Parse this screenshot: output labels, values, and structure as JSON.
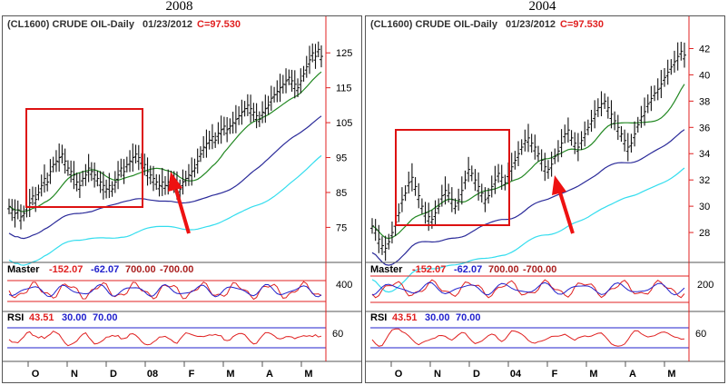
{
  "chart_data": [
    {
      "type": "ohlc",
      "title": "2008",
      "header": {
        "symbol": "(CL1600) CRUDE OIL-Daily",
        "date": "01/23/2012",
        "close_label": "C=97.530"
      },
      "y_ticks": [
        75,
        85,
        95,
        105,
        115,
        125
      ],
      "ylim": [
        66,
        130
      ],
      "x_labels": [
        "O",
        "N",
        "D",
        "08",
        "F",
        "M",
        "A",
        "M"
      ],
      "close_series": [
        81,
        80,
        79,
        80,
        78,
        79,
        81,
        82,
        84,
        83,
        85,
        87,
        89,
        88,
        91,
        93,
        94,
        95,
        96,
        94,
        92,
        91,
        90,
        88,
        87,
        89,
        90,
        92,
        91,
        90,
        89,
        88,
        87,
        86,
        87,
        86,
        88,
        90,
        92,
        91,
        93,
        94,
        95,
        96,
        95,
        94,
        93,
        91,
        90,
        89,
        88,
        87,
        88,
        87,
        88,
        89,
        88,
        87,
        86,
        88,
        89,
        90,
        91,
        92,
        94,
        96,
        98,
        99,
        100,
        101,
        100,
        102,
        103,
        104,
        103,
        104,
        105,
        106,
        107,
        108,
        109,
        110,
        109,
        108,
        107,
        106,
        108,
        109,
        110,
        112,
        113,
        114,
        115,
        116,
        117,
        118,
        117,
        116,
        115,
        117,
        119,
        121,
        123,
        125,
        124,
        126,
        124
      ]
    },
    {
      "type": "ohlc",
      "title": "2004",
      "header": {
        "symbol": "(CL1600) CRUDE OIL-Daily",
        "date": "01/23/2012",
        "close_label": "C=97.530"
      },
      "y_ticks": [
        28,
        30,
        32,
        34,
        36,
        38,
        40,
        42
      ],
      "ylim": [
        26,
        43
      ],
      "x_labels": [
        "O",
        "N",
        "D",
        "04",
        "F",
        "M",
        "A",
        "M"
      ],
      "close_series": [
        28.5,
        28.2,
        27.5,
        27.0,
        26.8,
        27.3,
        28.0,
        28.8,
        29.5,
        30.5,
        31.0,
        31.8,
        32.2,
        31.5,
        30.8,
        30.0,
        29.5,
        29.2,
        29.0,
        29.5,
        30.0,
        30.8,
        31.2,
        31.0,
        30.5,
        30.0,
        30.5,
        31.2,
        32.0,
        32.8,
        32.5,
        32.0,
        31.5,
        31.0,
        30.5,
        30.8,
        31.5,
        32.0,
        32.5,
        32.2,
        31.8,
        32.5,
        33.0,
        33.5,
        34.0,
        34.5,
        35.0,
        35.2,
        34.8,
        34.5,
        34.0,
        33.5,
        33.0,
        32.8,
        33.2,
        33.8,
        34.2,
        34.8,
        35.5,
        35.8,
        35.2,
        34.8,
        34.5,
        35.0,
        35.5,
        36.0,
        36.5,
        37.0,
        37.5,
        37.8,
        38.0,
        37.5,
        37.0,
        36.5,
        36.0,
        35.5,
        35.0,
        34.5,
        34.8,
        35.5,
        36.2,
        36.8,
        37.2,
        37.8,
        38.2,
        38.6,
        38.9,
        39.3,
        39.8,
        40.2,
        40.6,
        41.0,
        41.4,
        41.8,
        41.5
      ]
    }
  ],
  "indicators": {
    "master": {
      "label": "Master",
      "v1": "-152.07",
      "v2": "-62.07",
      "v3": "700.00",
      "v4": "-700.00"
    },
    "rsi": {
      "label": "RSI",
      "v1": "43.51",
      "v2": "30.00",
      "v3": "70.00"
    }
  },
  "master_ticks": {
    "left": "400",
    "right": "200"
  },
  "rsi_tick": "60",
  "colors": {
    "axis_red": "#e02020",
    "box_red": "#dd1111",
    "arrow_red": "#ee1111",
    "green_ma": "#228822",
    "navy_ma": "#2a2a99",
    "cyan_ma": "#33ddee",
    "blue_text": "#2222cc"
  }
}
